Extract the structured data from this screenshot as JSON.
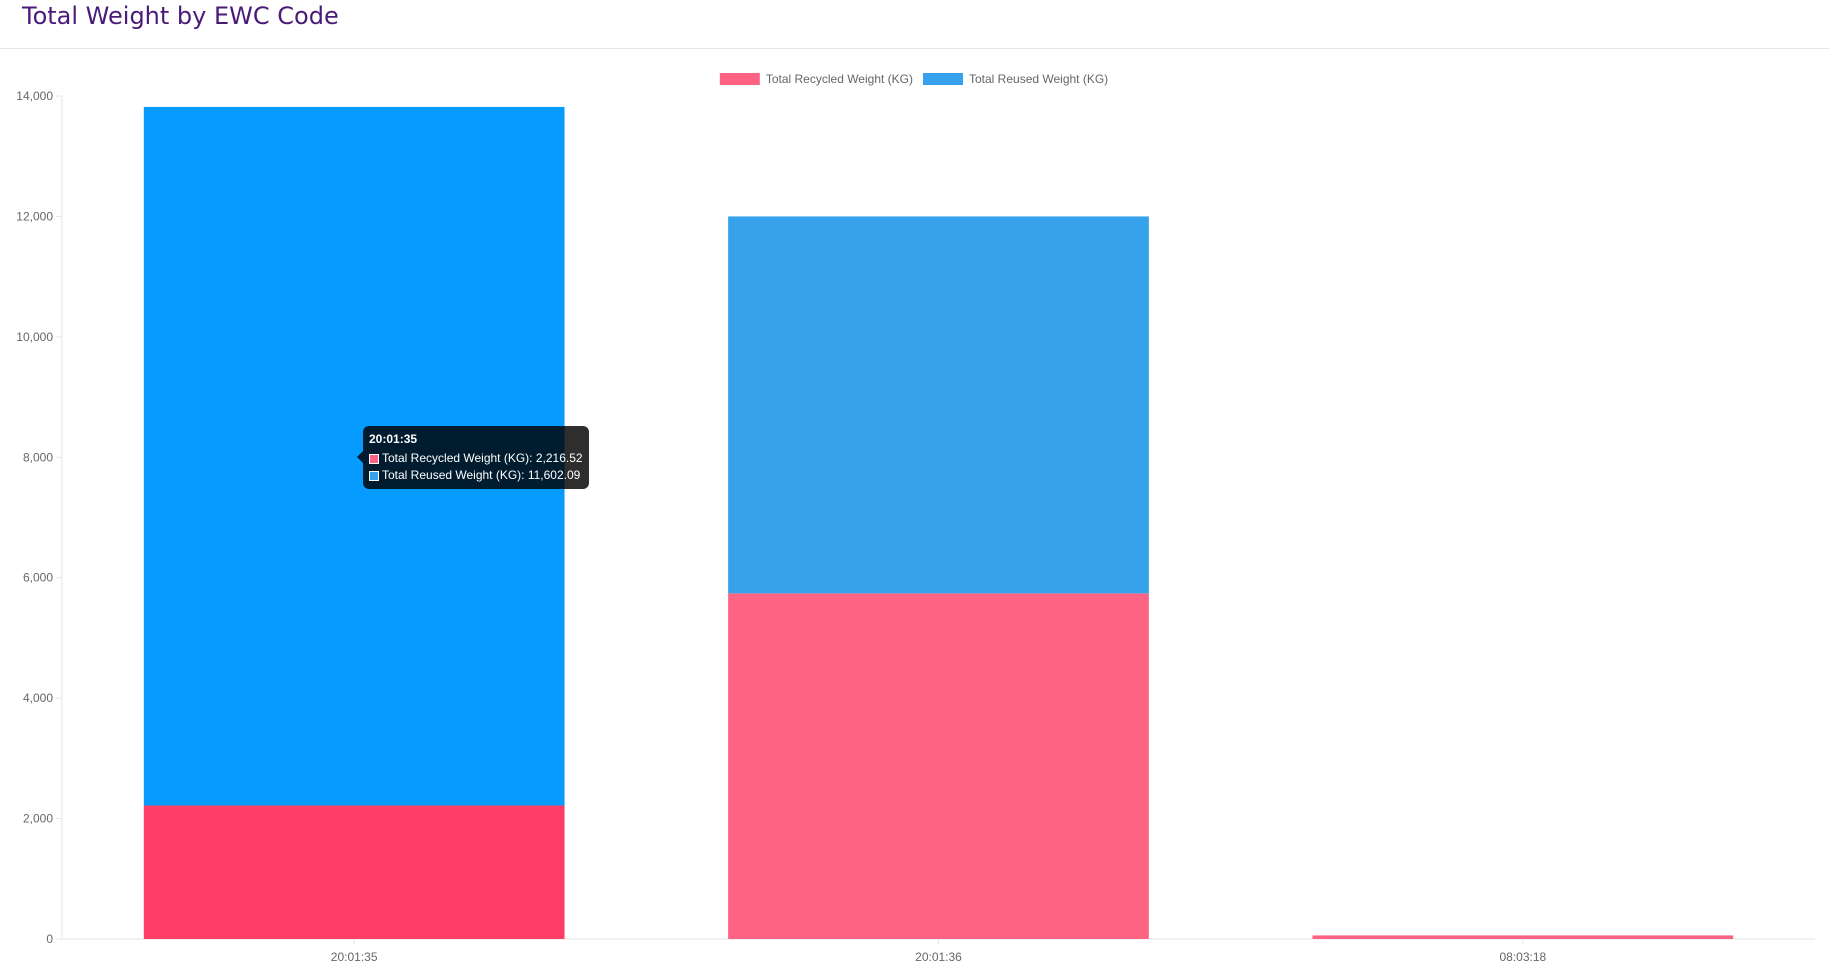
{
  "page": {
    "title": "Total Weight by EWC Code"
  },
  "chart_data": {
    "type": "bar",
    "stacked": true,
    "categories": [
      "20:01:35",
      "20:01:36",
      "08:03:18"
    ],
    "series": [
      {
        "name": "Total Recycled Weight (KG)",
        "values": [
          2216.52,
          5740,
          60
        ],
        "color": "#ff6384"
      },
      {
        "name": "Total Reused Weight (KG)",
        "values": [
          11602.09,
          6260,
          0
        ],
        "color": "#36a2eb"
      }
    ],
    "highlight": {
      "category_index": 0,
      "colors": [
        "#ff3d67",
        "#059bff"
      ]
    },
    "ylim": [
      0,
      14000
    ],
    "yticks": [
      0,
      2000,
      4000,
      6000,
      8000,
      10000,
      12000,
      14000
    ],
    "ytick_labels": [
      "0",
      "2,000",
      "4,000",
      "6,000",
      "8,000",
      "10,000",
      "12,000",
      "14,000"
    ],
    "legend_position": "top-center",
    "grid": false
  },
  "tooltip": {
    "title": "20:01:35",
    "lines": [
      {
        "text": "Total Recycled Weight (KG): 2,216.52",
        "color": "#ff6384"
      },
      {
        "text": "Total Reused Weight (KG): 11,602.09",
        "color": "#36a2eb"
      }
    ]
  }
}
